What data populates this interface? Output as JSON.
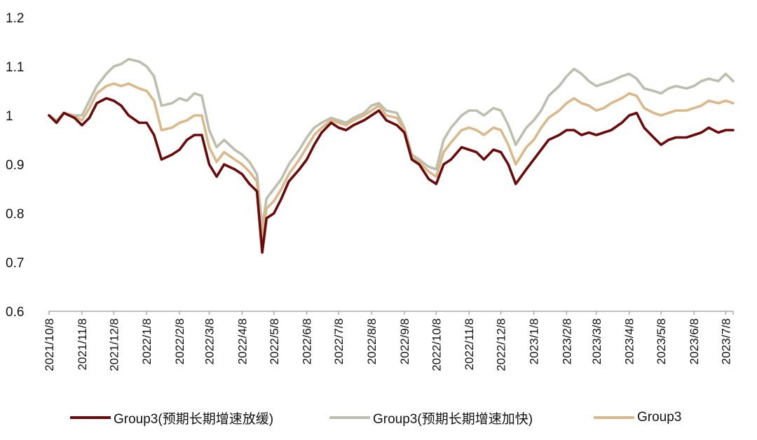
{
  "chart_data": {
    "type": "line",
    "title": "",
    "xlabel": "",
    "ylabel": "",
    "ylim": [
      0.6,
      1.2
    ],
    "yticks": [
      "0.6",
      "0.7",
      "0.8",
      "0.9",
      "1",
      "1.1",
      "1.2"
    ],
    "x_tick_labels": [
      "2021/10/8",
      "2021/11/8",
      "2021/12/8",
      "2022/1/8",
      "2022/2/8",
      "2022/3/8",
      "2022/4/8",
      "2022/5/8",
      "2022/6/8",
      "2022/7/8",
      "2022/8/8",
      "2022/9/8",
      "2022/10/8",
      "2022/11/8",
      "2022/12/8",
      "2023/1/8",
      "2023/2/8",
      "2023/3/8",
      "2023/4/8",
      "2023/5/8",
      "2023/6/8",
      "2023/7/8"
    ],
    "grid": false,
    "legend_position": "bottom",
    "x": [
      "2021/10/8",
      "2021/10/15",
      "2021/10/22",
      "2021/11/1",
      "2021/11/8",
      "2021/11/15",
      "2021/11/22",
      "2021/12/1",
      "2021/12/8",
      "2021/12/15",
      "2021/12/22",
      "2022/1/1",
      "2022/1/8",
      "2022/1/15",
      "2022/1/22",
      "2022/2/1",
      "2022/2/8",
      "2022/2/15",
      "2022/2/22",
      "2022/3/1",
      "2022/3/8",
      "2022/3/15",
      "2022/3/22",
      "2022/4/1",
      "2022/4/8",
      "2022/4/15",
      "2022/4/22",
      "2022/4/27",
      "2022/5/1",
      "2022/5/8",
      "2022/5/15",
      "2022/5/22",
      "2022/6/1",
      "2022/6/8",
      "2022/6/15",
      "2022/6/22",
      "2022/7/1",
      "2022/7/8",
      "2022/7/15",
      "2022/7/22",
      "2022/8/1",
      "2022/8/8",
      "2022/8/15",
      "2022/8/22",
      "2022/9/1",
      "2022/9/8",
      "2022/9/15",
      "2022/9/22",
      "2022/10/1",
      "2022/10/8",
      "2022/10/15",
      "2022/10/22",
      "2022/11/1",
      "2022/11/8",
      "2022/11/15",
      "2022/11/22",
      "2022/12/1",
      "2022/12/8",
      "2022/12/15",
      "2022/12/22",
      "2023/1/1",
      "2023/1/8",
      "2023/1/15",
      "2023/1/22",
      "2023/2/1",
      "2023/2/8",
      "2023/2/15",
      "2023/2/22",
      "2023/3/1",
      "2023/3/8",
      "2023/3/15",
      "2023/3/22",
      "2023/4/1",
      "2023/4/8",
      "2023/4/15",
      "2023/4/22",
      "2023/5/1",
      "2023/5/8",
      "2023/5/15",
      "2023/5/22",
      "2023/6/1",
      "2023/6/8",
      "2023/6/15",
      "2023/6/22",
      "2023/7/1",
      "2023/7/8",
      "2023/7/15"
    ],
    "series": [
      {
        "name": "Group3(预期长期增速放缓)",
        "color": "#6B0A0A",
        "values": [
          1.0,
          0.985,
          1.005,
          0.995,
          0.98,
          0.995,
          1.025,
          1.035,
          1.03,
          1.02,
          1.0,
          0.985,
          0.985,
          0.96,
          0.91,
          0.92,
          0.93,
          0.95,
          0.96,
          0.96,
          0.9,
          0.875,
          0.9,
          0.89,
          0.88,
          0.86,
          0.845,
          0.72,
          0.79,
          0.8,
          0.83,
          0.865,
          0.89,
          0.91,
          0.94,
          0.965,
          0.985,
          0.975,
          0.97,
          0.98,
          0.99,
          1.0,
          1.01,
          0.99,
          0.98,
          0.965,
          0.91,
          0.9,
          0.87,
          0.86,
          0.9,
          0.91,
          0.935,
          0.93,
          0.925,
          0.91,
          0.93,
          0.925,
          0.9,
          0.86,
          0.89,
          0.91,
          0.93,
          0.95,
          0.96,
          0.97,
          0.97,
          0.96,
          0.965,
          0.96,
          0.965,
          0.97,
          0.985,
          1.0,
          1.005,
          0.975,
          0.955,
          0.94,
          0.95,
          0.955,
          0.955,
          0.96,
          0.965,
          0.975,
          0.965,
          0.97,
          0.97
        ]
      },
      {
        "name": "Group3(预期长期增速加快)",
        "color": "#BDBFAE",
        "values": [
          1.0,
          0.99,
          1.005,
          1.0,
          1.0,
          1.03,
          1.06,
          1.085,
          1.1,
          1.105,
          1.115,
          1.11,
          1.1,
          1.08,
          1.02,
          1.025,
          1.035,
          1.03,
          1.045,
          1.04,
          0.97,
          0.935,
          0.95,
          0.93,
          0.92,
          0.905,
          0.88,
          0.77,
          0.83,
          0.85,
          0.87,
          0.9,
          0.93,
          0.955,
          0.975,
          0.985,
          0.995,
          0.99,
          0.985,
          0.995,
          1.005,
          1.02,
          1.025,
          1.01,
          1.005,
          0.975,
          0.92,
          0.91,
          0.895,
          0.89,
          0.95,
          0.975,
          1.0,
          1.01,
          1.01,
          1.0,
          1.015,
          1.01,
          0.98,
          0.94,
          0.975,
          0.99,
          1.01,
          1.04,
          1.06,
          1.08,
          1.095,
          1.085,
          1.07,
          1.06,
          1.065,
          1.07,
          1.08,
          1.085,
          1.075,
          1.055,
          1.05,
          1.045,
          1.055,
          1.06,
          1.055,
          1.06,
          1.07,
          1.075,
          1.07,
          1.085,
          1.07
        ]
      },
      {
        "name": "Group3",
        "color": "#D9B98A",
        "values": [
          1.0,
          0.985,
          1.005,
          0.998,
          0.99,
          1.015,
          1.045,
          1.06,
          1.065,
          1.06,
          1.065,
          1.055,
          1.05,
          1.03,
          0.97,
          0.975,
          0.985,
          0.99,
          1.0,
          1.0,
          0.935,
          0.905,
          0.925,
          0.91,
          0.9,
          0.885,
          0.865,
          0.745,
          0.81,
          0.825,
          0.85,
          0.88,
          0.91,
          0.935,
          0.96,
          0.975,
          0.99,
          0.985,
          0.98,
          0.99,
          1.0,
          1.01,
          1.02,
          1.0,
          0.995,
          0.97,
          0.915,
          0.905,
          0.885,
          0.875,
          0.925,
          0.945,
          0.97,
          0.975,
          0.97,
          0.96,
          0.975,
          0.97,
          0.94,
          0.9,
          0.935,
          0.95,
          0.975,
          0.995,
          1.01,
          1.025,
          1.035,
          1.025,
          1.02,
          1.01,
          1.015,
          1.025,
          1.035,
          1.045,
          1.04,
          1.015,
          1.005,
          1.0,
          1.005,
          1.01,
          1.01,
          1.015,
          1.02,
          1.03,
          1.025,
          1.03,
          1.025
        ]
      }
    ]
  }
}
